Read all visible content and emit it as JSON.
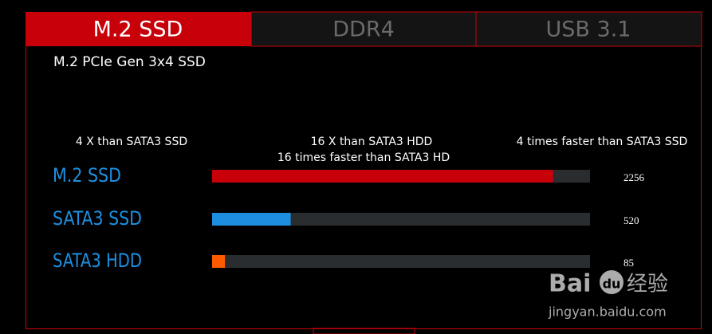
{
  "tabs": [
    "M.2 SSD",
    "DDR4",
    "USB 3.1"
  ],
  "watermark": {
    "brand": "Bai",
    "brand2": "du",
    "brand3": "经验",
    "url": "jingyan.baidu.com"
  },
  "chart_data": {
    "type": "hbar",
    "title": "M.2 PCIe Gen 3x4 SSD",
    "annotations": [
      "4 X than SATA3 SSD",
      "16 X than SATA3 HDD",
      "16 times faster than SATA3 HD",
      "4 times faster than SATA3 SSD"
    ],
    "categories": [
      "M.2 SSD",
      "SATA3 SSD",
      "SATA3 HDD"
    ],
    "values": [
      2256,
      520,
      85
    ],
    "colors": [
      "#c8000a",
      "#1e8fe0",
      "#ff5a00"
    ],
    "label_color": "#1e8fe0",
    "xlim": [
      0,
      2500
    ]
  }
}
